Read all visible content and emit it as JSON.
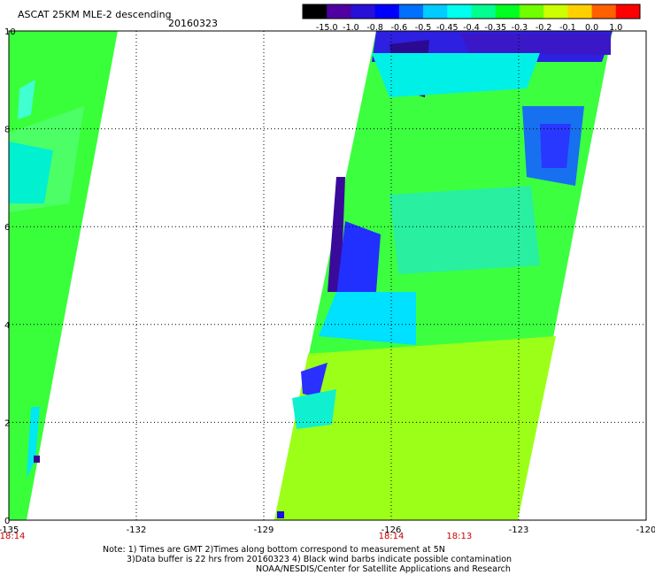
{
  "header": {
    "title": "ASCAT 25KM MLE-2 descending",
    "date": "20160323"
  },
  "colorbar": {
    "labels": [
      "-15.0",
      "-1.0",
      "-0.8",
      "-0.6",
      "-0.5",
      "-0.45",
      "-0.4",
      "-0.35",
      "-0.3",
      "-0.2",
      "-0.1",
      "0.0",
      "1.0"
    ],
    "colors": [
      "#000000",
      "#5000a0",
      "#2810d8",
      "#0000ff",
      "#0070ff",
      "#00ccff",
      "#00ffee",
      "#00ff90",
      "#00ff20",
      "#70ff00",
      "#ccff00",
      "#ffd000",
      "#ff6000",
      "#ff0000"
    ]
  },
  "map": {
    "x_ticks": [
      "-135",
      "-132",
      "-129",
      "-126",
      "-123",
      "-120"
    ],
    "y_ticks": [
      "0",
      "2",
      "4",
      "6",
      "8",
      "10"
    ],
    "time_labels": [
      {
        "text": "18:14",
        "lon": -135
      },
      {
        "text": "18:14",
        "lon": -126
      },
      {
        "text": "18:13",
        "lon": -124.4
      }
    ]
  },
  "notes": [
    "Note: 1) Times are GMT 2)Times along bottom correspond to measurement at 5N",
    "3)Data buffer is 22 hrs from 20160323 4) Black wind barbs indicate possible contamination",
    "NOAA/NESDIS/Center for Satellite Applications and Research"
  ]
}
